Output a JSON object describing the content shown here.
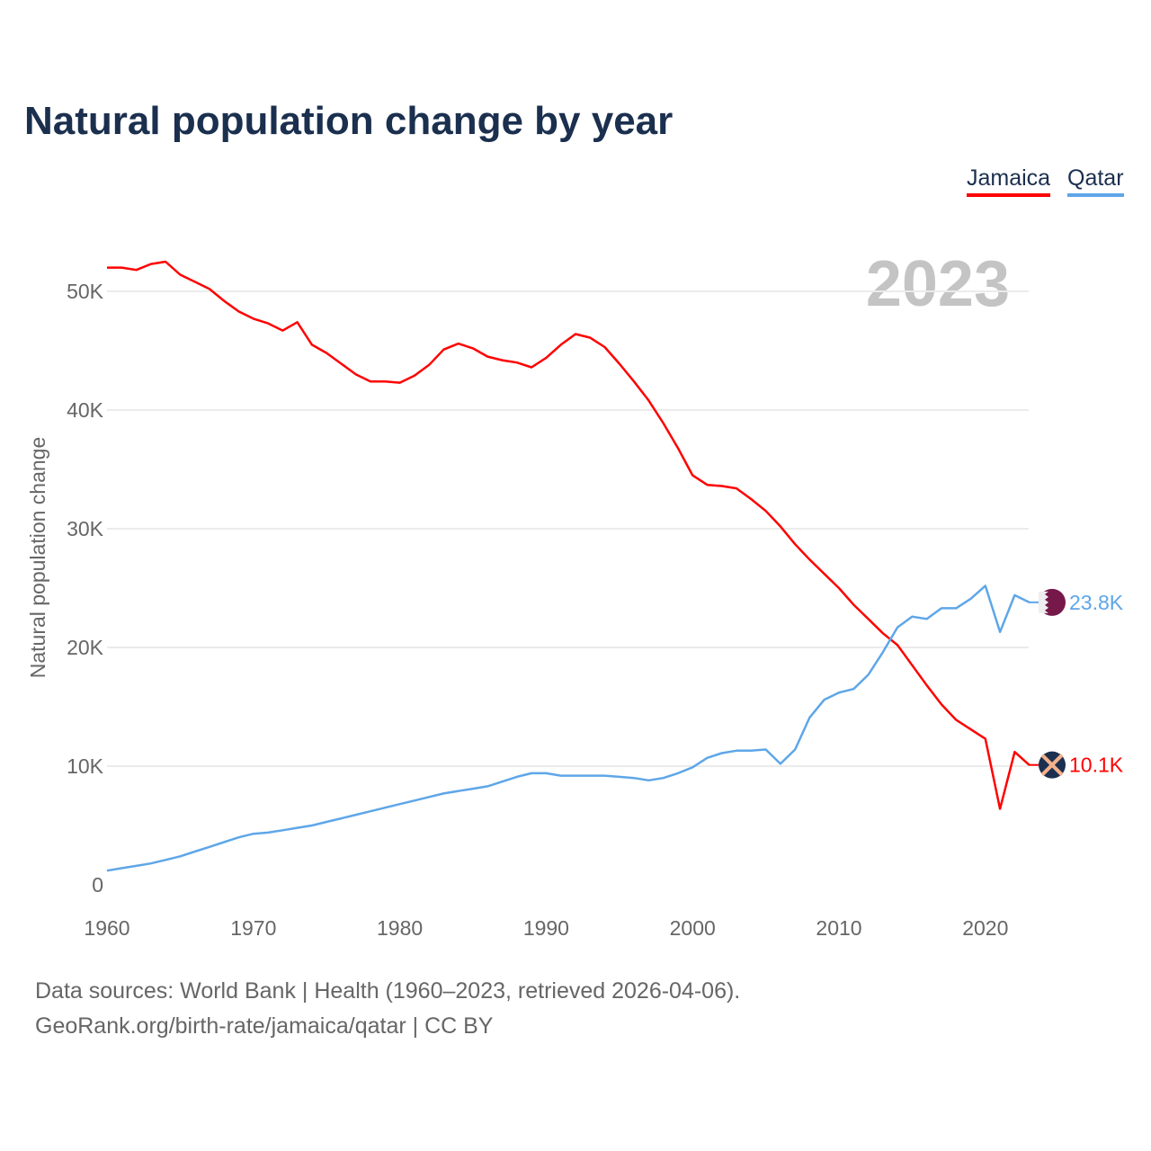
{
  "title": "Natural population change by year",
  "legend": [
    "Jamaica",
    "Qatar"
  ],
  "year_label": "2023",
  "footer": {
    "line1": "Data sources: World Bank | Health (1960–2023, retrieved 2026-04-06).",
    "line2": "GeoRank.org/birth-rate/jamaica/qatar | CC BY"
  },
  "chart_data": {
    "type": "line",
    "title": "Natural population change by year",
    "xlabel": "",
    "ylabel": "Natural population change",
    "xlim": [
      1960,
      2023
    ],
    "ylim": [
      0,
      55000
    ],
    "x_ticks": [
      1960,
      1970,
      1980,
      1990,
      2000,
      2010,
      2020
    ],
    "y_ticks": [
      0,
      10000,
      20000,
      30000,
      40000,
      50000
    ],
    "y_tick_labels": [
      "0",
      "10K",
      "20K",
      "30K",
      "40K",
      "50K"
    ],
    "grid": true,
    "legend_position": "top-right",
    "x_start": 1960,
    "series": [
      {
        "name": "Jamaica",
        "color": "#ff0000",
        "end_label": "10.1K",
        "flag": "jamaica-flag",
        "values": [
          52000,
          52000,
          51800,
          52300,
          52500,
          51400,
          50800,
          50200,
          49200,
          48300,
          47700,
          47300,
          46700,
          47400,
          45500,
          44800,
          43900,
          43000,
          42400,
          42400,
          42300,
          42900,
          43800,
          45100,
          45600,
          45200,
          44500,
          44200,
          44000,
          43600,
          44400,
          45500,
          46400,
          46100,
          45300,
          43900,
          42400,
          40800,
          38900,
          36800,
          34500,
          33700,
          33600,
          33400,
          32500,
          31500,
          30200,
          28700,
          27400,
          26200,
          25000,
          23600,
          22400,
          21200,
          20200,
          18500,
          16800,
          15200,
          13900,
          13100,
          12300,
          6400,
          11200,
          10100
        ]
      },
      {
        "name": "Qatar",
        "color": "#5ea6e8",
        "end_label": "23.8K",
        "flag": "qatar-flag",
        "values": [
          1200,
          1400,
          1600,
          1800,
          2100,
          2400,
          2800,
          3200,
          3600,
          4000,
          4300,
          4400,
          4600,
          4800,
          5000,
          5300,
          5600,
          5900,
          6200,
          6500,
          6800,
          7100,
          7400,
          7700,
          7900,
          8100,
          8300,
          8700,
          9100,
          9400,
          9400,
          9200,
          9200,
          9200,
          9200,
          9100,
          9000,
          8800,
          9000,
          9400,
          9900,
          10700,
          11100,
          11300,
          11300,
          11400,
          10200,
          11400,
          14100,
          15600,
          16200,
          16500,
          17700,
          19600,
          21700,
          22600,
          22400,
          23300,
          23300,
          24100,
          25200,
          21300,
          24400,
          23800
        ]
      }
    ]
  }
}
